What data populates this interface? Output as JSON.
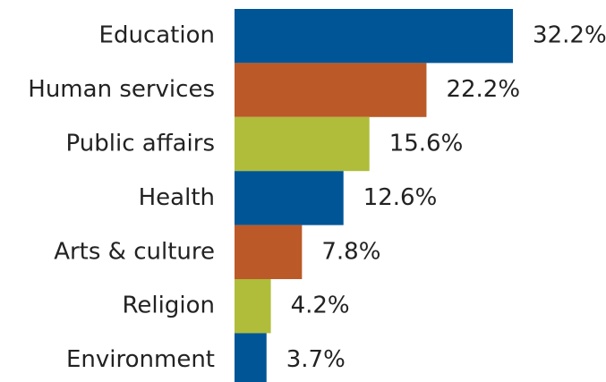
{
  "chart_data": {
    "type": "bar",
    "orientation": "horizontal",
    "categories": [
      "Education",
      "Human services",
      "Public affairs",
      "Health",
      "Arts & culture",
      "Religion",
      "Environment"
    ],
    "values": [
      32.2,
      22.2,
      15.6,
      12.6,
      7.8,
      4.2,
      3.7
    ],
    "value_labels": [
      "32.2%",
      "22.2%",
      "15.6%",
      "12.6%",
      "7.8%",
      "4.2%",
      "3.7%"
    ],
    "colors": [
      "#005596",
      "#bb5a28",
      "#afbd3a",
      "#005596",
      "#bb5a28",
      "#afbd3a",
      "#005596"
    ]
  }
}
